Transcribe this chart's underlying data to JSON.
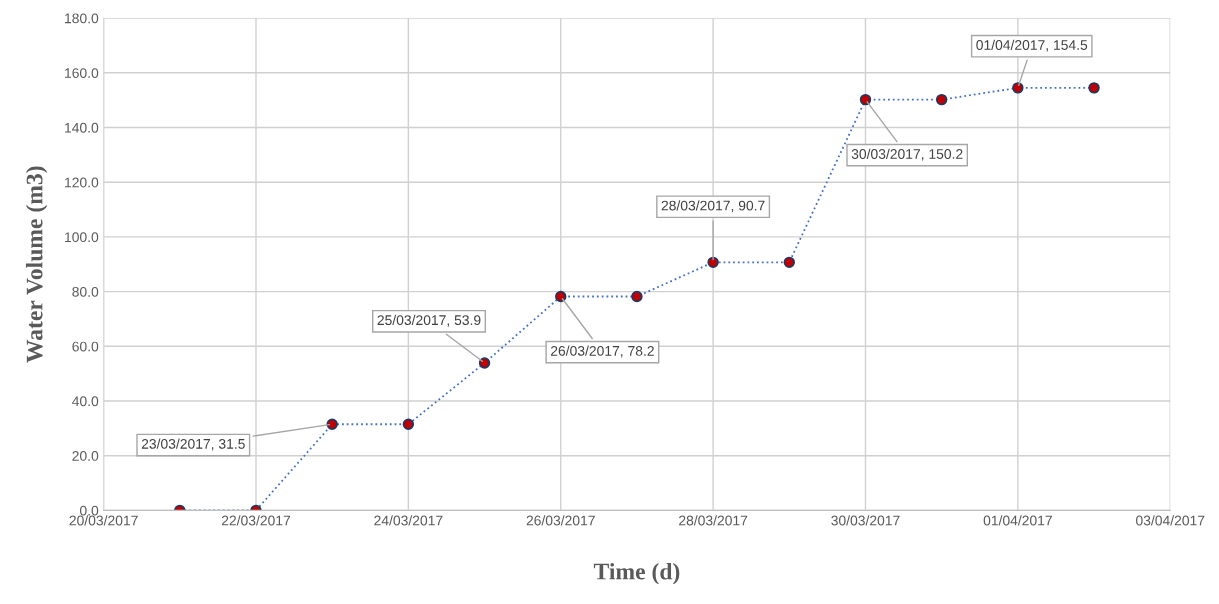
{
  "chart_data": {
    "type": "line",
    "xlabel": "Time (d)",
    "ylabel": "Water Volume (m3)",
    "x": [
      "2017-03-21",
      "2017-03-22",
      "2017-03-23",
      "2017-03-24",
      "2017-03-25",
      "2017-03-26",
      "2017-03-27",
      "2017-03-28",
      "2017-03-29",
      "2017-03-30",
      "2017-03-31",
      "2017-04-01",
      "2017-04-02"
    ],
    "series": [
      {
        "color": "#c00000",
        "values": [
          0,
          0,
          31.5,
          31.5,
          53.9,
          78.2,
          78.2,
          90.7,
          90.7,
          150.2,
          150.2,
          154.5,
          154.5
        ]
      }
    ],
    "xlim": [
      "2017-03-20",
      "2017-04-03"
    ],
    "xticks": [
      {
        "value": "2017-03-20",
        "label": "20/03/2017"
      },
      {
        "value": "2017-03-22",
        "label": "22/03/2017"
      },
      {
        "value": "2017-03-24",
        "label": "24/03/2017"
      },
      {
        "value": "2017-03-26",
        "label": "26/03/2017"
      },
      {
        "value": "2017-03-28",
        "label": "28/03/2017"
      },
      {
        "value": "2017-03-30",
        "label": "30/03/2017"
      },
      {
        "value": "2017-04-01",
        "label": "01/04/2017"
      },
      {
        "value": "2017-04-03",
        "label": "03/04/2017"
      }
    ],
    "ylim": [
      0,
      180
    ],
    "yticks": [
      {
        "value": 0,
        "label": "0.0"
      },
      {
        "value": 20,
        "label": "20.0"
      },
      {
        "value": 40,
        "label": "40.0"
      },
      {
        "value": 60,
        "label": "60.0"
      },
      {
        "value": 80,
        "label": "80.0"
      },
      {
        "value": 100,
        "label": "100.0"
      },
      {
        "value": 120,
        "label": "120.0"
      },
      {
        "value": 140,
        "label": "140.0"
      },
      {
        "value": 160,
        "label": "160.0"
      },
      {
        "value": 180,
        "label": "180.0"
      }
    ],
    "grid": true,
    "marker": "circle",
    "line_style": "dotted",
    "legend": false,
    "annotations": [
      {
        "text": "23/03/2017, 31.5",
        "x": "2017-03-23",
        "y": 31.5
      },
      {
        "text": "25/03/2017, 53.9",
        "x": "2017-03-25",
        "y": 53.9
      },
      {
        "text": "26/03/2017, 78.2",
        "x": "2017-03-26",
        "y": 78.2
      },
      {
        "text": "28/03/2017, 90.7",
        "x": "2017-03-28",
        "y": 90.7
      },
      {
        "text": "30/03/2017, 150.2",
        "x": "2017-03-30",
        "y": 150.2
      },
      {
        "text": "01/04/2017, 154.5",
        "x": "2017-04-01",
        "y": 154.5
      }
    ]
  }
}
